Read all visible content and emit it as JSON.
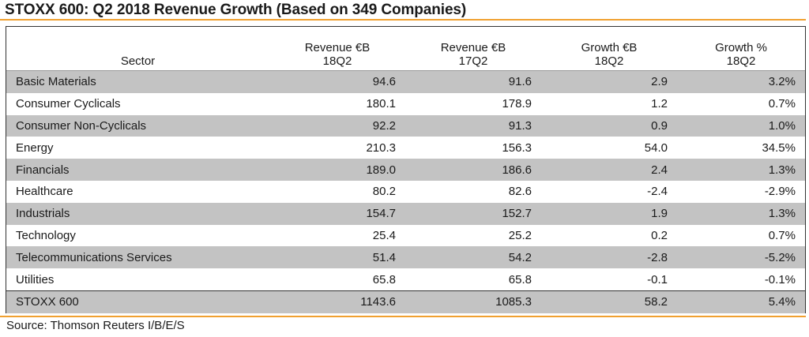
{
  "title": "STOXX 600: Q2 2018 Revenue Growth (Based on 349 Companies)",
  "source": "Source: Thomson Reuters I/B/E/S",
  "colors": {
    "accent_rule": "#f0a030",
    "shaded_row": "#c3c3c3",
    "text": "#1a1a1a"
  },
  "chart_data": {
    "type": "table",
    "title": "STOXX 600: Q2 2018 Revenue Growth (Based on 349 Companies)",
    "columns": [
      {
        "line1": "",
        "line2": "Sector"
      },
      {
        "line1": "Revenue €B",
        "line2": "18Q2"
      },
      {
        "line1": "Revenue €B",
        "line2": "17Q2"
      },
      {
        "line1": "Growth €B",
        "line2": "18Q2"
      },
      {
        "line1": "Growth %",
        "line2": "18Q2"
      }
    ],
    "rows": [
      {
        "sector": "Basic Materials",
        "rev18": "94.6",
        "rev17": "91.6",
        "growth_eur": "2.9",
        "growth_pct": "3.2%"
      },
      {
        "sector": "Consumer Cyclicals",
        "rev18": "180.1",
        "rev17": "178.9",
        "growth_eur": "1.2",
        "growth_pct": "0.7%"
      },
      {
        "sector": "Consumer Non-Cyclicals",
        "rev18": "92.2",
        "rev17": "91.3",
        "growth_eur": "0.9",
        "growth_pct": "1.0%"
      },
      {
        "sector": "Energy",
        "rev18": "210.3",
        "rev17": "156.3",
        "growth_eur": "54.0",
        "growth_pct": "34.5%"
      },
      {
        "sector": "Financials",
        "rev18": "189.0",
        "rev17": "186.6",
        "growth_eur": "2.4",
        "growth_pct": "1.3%"
      },
      {
        "sector": "Healthcare",
        "rev18": "80.2",
        "rev17": "82.6",
        "growth_eur": "-2.4",
        "growth_pct": "-2.9%"
      },
      {
        "sector": "Industrials",
        "rev18": "154.7",
        "rev17": "152.7",
        "growth_eur": "1.9",
        "growth_pct": "1.3%"
      },
      {
        "sector": "Technology",
        "rev18": "25.4",
        "rev17": "25.2",
        "growth_eur": "0.2",
        "growth_pct": "0.7%"
      },
      {
        "sector": "Telecommunications Services",
        "rev18": "51.4",
        "rev17": "54.2",
        "growth_eur": "-2.8",
        "growth_pct": "-5.2%"
      },
      {
        "sector": "Utilities",
        "rev18": "65.8",
        "rev17": "65.8",
        "growth_eur": "-0.1",
        "growth_pct": "-0.1%"
      }
    ],
    "total": {
      "sector": "STOXX 600",
      "rev18": "1143.6",
      "rev17": "1085.3",
      "growth_eur": "58.2",
      "growth_pct": "5.4%"
    }
  }
}
